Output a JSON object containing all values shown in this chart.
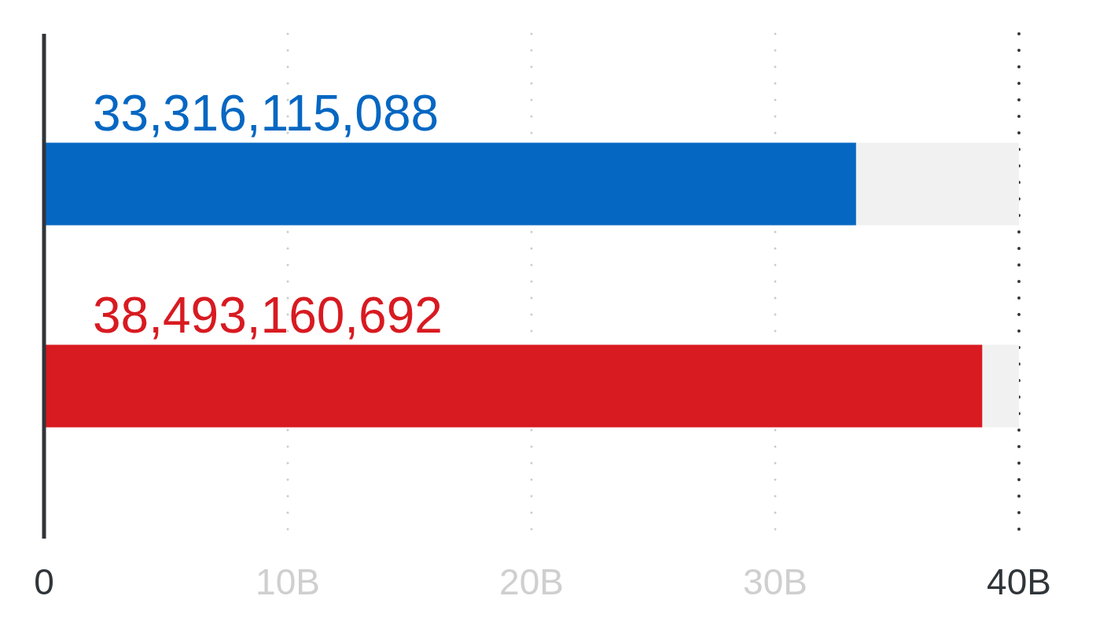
{
  "chart_data": {
    "type": "bar",
    "orientation": "horizontal",
    "categories": [
      null,
      null
    ],
    "values": [
      33316115088,
      38493160692
    ],
    "colors": [
      "#0667c2",
      "#d81a21"
    ],
    "value_labels": [
      "33,316,115,088",
      "38,493,160,692"
    ],
    "xlim": [
      0,
      40000000000
    ],
    "xticks": [
      {
        "value": 0,
        "label": "0"
      },
      {
        "value": 10000000000,
        "label": "10B"
      },
      {
        "value": 20000000000,
        "label": "20B"
      },
      {
        "value": 30000000000,
        "label": "30B"
      },
      {
        "value": 40000000000,
        "label": "40B"
      }
    ],
    "grid": "x"
  }
}
